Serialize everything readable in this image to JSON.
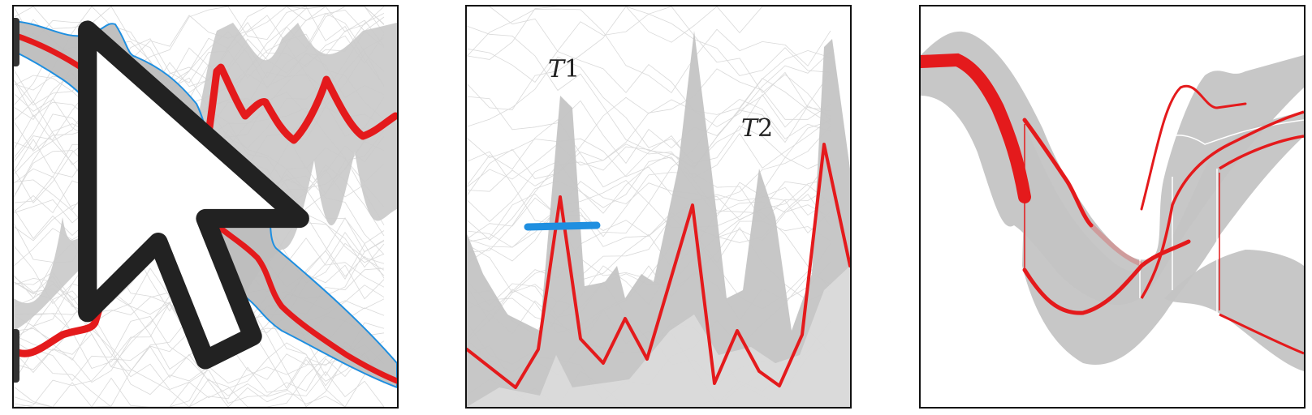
{
  "panels": {
    "left": {
      "name": "brushed-trajectories"
    },
    "middle": {
      "labels": [
        {
          "var": "T",
          "sub": "1"
        },
        {
          "var": "T",
          "sub": "2"
        }
      ]
    },
    "right": {
      "name": "branching-bands"
    }
  },
  "colors": {
    "highlight": "#e41a1c",
    "band": "#c8c8c8",
    "background_lines": "#dcdcdc",
    "brush": "#1f8fe0",
    "frame": "#111111"
  },
  "icons": {
    "cursor": "mouse-pointer-icon",
    "handle": "drag-handle-icon"
  }
}
